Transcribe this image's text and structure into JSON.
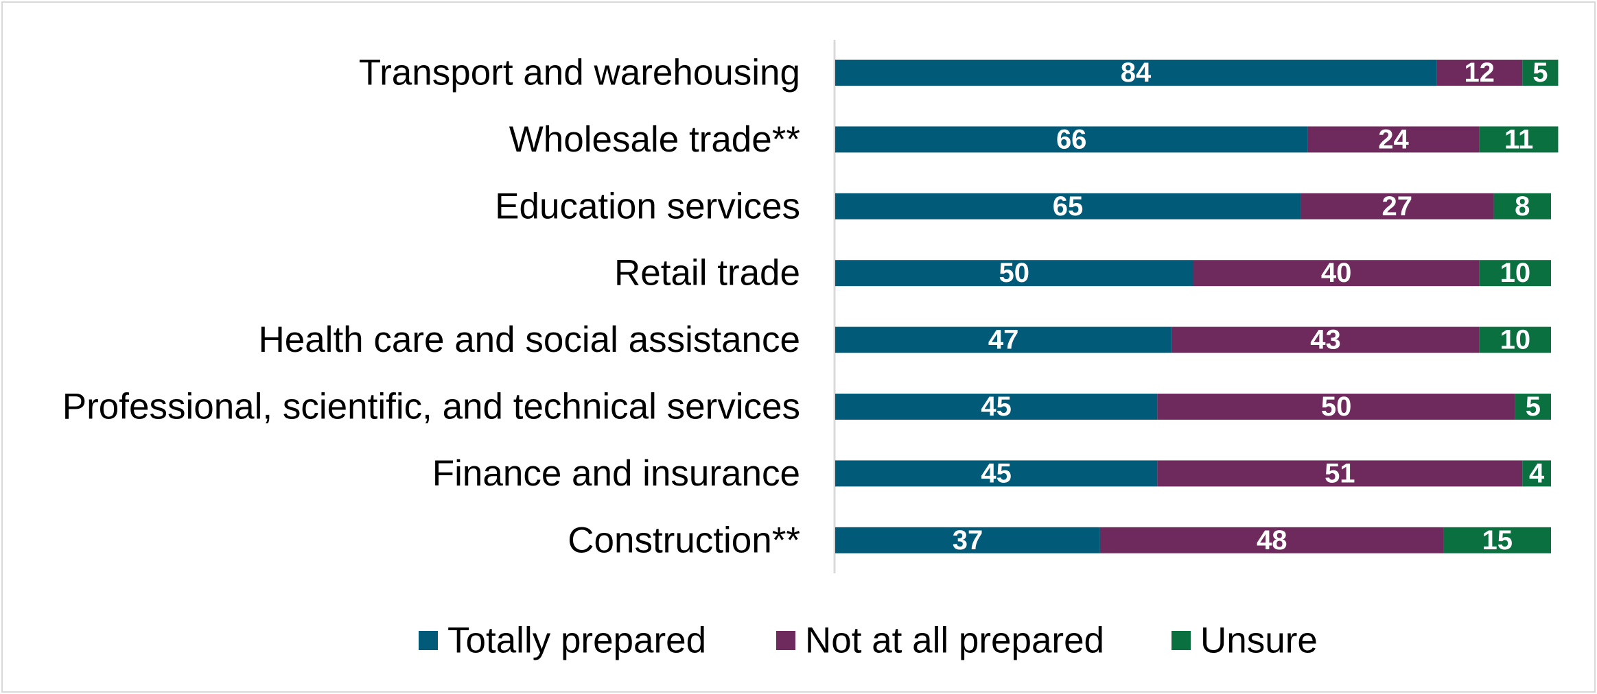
{
  "chart_data": {
    "type": "bar",
    "orientation": "horizontal",
    "stacked": true,
    "title": "",
    "xlabel": "",
    "ylabel": "",
    "xlim": [
      0,
      100
    ],
    "grid": false,
    "legend_position": "bottom",
    "categories": [
      "Transport and warehousing",
      "Wholesale trade**",
      "Education services",
      "Retail trade",
      "Health care and social assistance",
      "Professional, scientific, and technical services",
      "Finance and insurance",
      "Construction**"
    ],
    "series": [
      {
        "name": "Totally prepared",
        "color": "#005a78",
        "values": [
          84,
          66,
          65,
          50,
          47,
          45,
          45,
          37
        ]
      },
      {
        "name": "Not at all prepared",
        "color": "#6e2a5c",
        "values": [
          12,
          24,
          27,
          40,
          43,
          50,
          51,
          48
        ]
      },
      {
        "name": "Unsure",
        "color": "#0a7040",
        "values": [
          5,
          11,
          8,
          10,
          10,
          5,
          4,
          15
        ]
      }
    ]
  }
}
